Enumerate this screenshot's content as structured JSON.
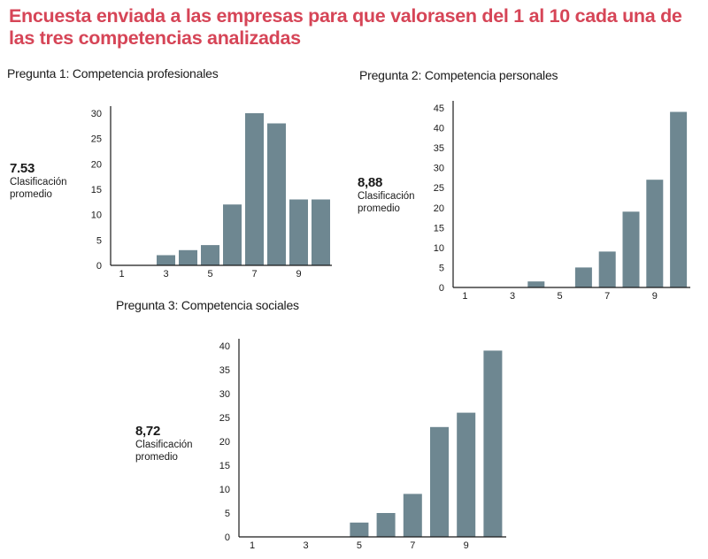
{
  "title": "Encuesta enviada a las empresas para que valorasen del 1 al 10 cada una de las tres competencias analizadas",
  "colors": {
    "title": "#d64557",
    "bar": "#6e8791",
    "axis": "#1a1a1a"
  },
  "charts": [
    {
      "heading": "Pregunta 1: Competencia profesionales",
      "average": "7.53",
      "average_label": "Clasificación promedio"
    },
    {
      "heading": "Pregunta 2: Competencia personales",
      "average": "8,88",
      "average_label": "Clasificación promedio"
    },
    {
      "heading": "Pregunta 3: Competencia sociales",
      "average": "8,72",
      "average_label": "Clasificación promedio"
    }
  ],
  "chart_data": [
    {
      "type": "bar",
      "title": "Pregunta 1: Competencia profesionales",
      "categories": [
        1,
        2,
        3,
        4,
        5,
        6,
        7,
        8,
        9,
        10
      ],
      "values": [
        0,
        0,
        2,
        3,
        4,
        12,
        30,
        28,
        13,
        13
      ],
      "x_tick_labels": [
        "1",
        "3",
        "5",
        "7",
        "9"
      ],
      "y_ticks": [
        0,
        5,
        10,
        15,
        20,
        25,
        30
      ],
      "ylim": [
        0,
        30
      ],
      "xlabel": "",
      "ylabel": ""
    },
    {
      "type": "bar",
      "title": "Pregunta 2: Competencia personales",
      "categories": [
        1,
        2,
        3,
        4,
        5,
        6,
        7,
        8,
        9,
        10
      ],
      "values": [
        0,
        0,
        0,
        1.5,
        0,
        5,
        9,
        19,
        27,
        44
      ],
      "x_tick_labels": [
        "1",
        "3",
        "5",
        "7",
        "9"
      ],
      "y_ticks": [
        0,
        5,
        10,
        15,
        20,
        25,
        30,
        35,
        40,
        45
      ],
      "ylim": [
        0,
        45
      ],
      "xlabel": "",
      "ylabel": ""
    },
    {
      "type": "bar",
      "title": "Pregunta 3: Competencia sociales",
      "categories": [
        1,
        2,
        3,
        4,
        5,
        6,
        7,
        8,
        9,
        10
      ],
      "values": [
        0,
        0,
        0,
        0,
        3,
        5,
        9,
        23,
        26,
        39
      ],
      "x_tick_labels": [
        "1",
        "3",
        "5",
        "7",
        "9"
      ],
      "y_ticks": [
        0,
        5,
        10,
        15,
        20,
        25,
        30,
        35,
        40
      ],
      "ylim": [
        0,
        40
      ],
      "xlabel": "",
      "ylabel": ""
    }
  ]
}
